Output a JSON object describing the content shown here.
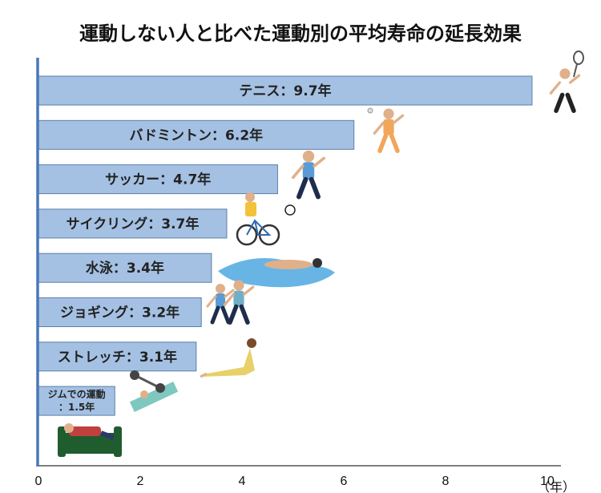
{
  "chart_data": {
    "type": "bar",
    "orientation": "horizontal",
    "title": "運動しない人と比べた運動別の平均寿命の延長効果",
    "xlabel": "（年）",
    "xlim": [
      0,
      10
    ],
    "xticks": [
      0,
      2,
      4,
      6,
      8,
      10
    ],
    "categories": [
      "テニス",
      "バドミントン",
      "サッカー",
      "サイクリング",
      "水泳",
      "ジョギング",
      "ストレッチ",
      "ジムでの運動",
      ""
    ],
    "values": [
      9.7,
      6.2,
      4.7,
      3.7,
      3.4,
      3.2,
      3.1,
      1.5,
      0
    ],
    "labels": [
      "テニス：9.7年",
      "バドミントン：6.2年",
      "サッカー：4.7年",
      "サイクリング：3.7年",
      "水泳：3.4年",
      "ジョギング：3.2年",
      "ストレッチ：3.1年",
      "ジムでの運動\n：1.5年",
      ""
    ],
    "icons": [
      "tennis-player-icon",
      "badminton-player-icon",
      "soccer-player-icon",
      "cyclist-icon",
      "swimmer-icon",
      "joggers-icon",
      "stretching-woman-icon",
      "gym-bench-press-icon",
      "sofa-lounger-icon"
    ],
    "colors": {
      "bar": "#a4c1e3",
      "bar_border": "#5b7faa",
      "axis": "#4a78b8"
    }
  }
}
